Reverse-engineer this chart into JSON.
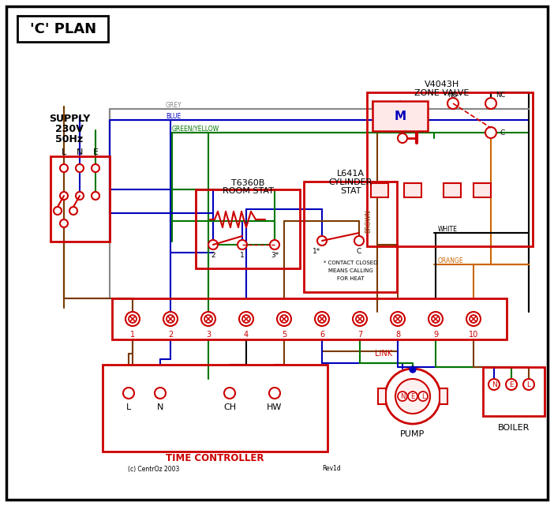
{
  "title": "'C' PLAN",
  "bg_color": "#ffffff",
  "red": "#cc0000",
  "blue": "#0000bb",
  "green": "#007700",
  "brown": "#7a3b00",
  "grey": "#888888",
  "orange": "#cc6600",
  "black": "#000000",
  "zone_valve_title": [
    "V4043H",
    "ZONE VALVE"
  ],
  "room_stat_title": [
    "T6360B",
    "ROOM STAT"
  ],
  "cyl_stat_title": [
    "L641A",
    "CYLINDER",
    "STAT"
  ],
  "time_ctrl_title": "TIME CONTROLLER",
  "pump_label": "PUMP",
  "boiler_label": "BOILER",
  "link_label": "LINK",
  "copyright": "(c) CentrOz 2003",
  "revision": "Rev1d",
  "contact_note": [
    "* CONTACT CLOSED",
    "MEANS CALLING",
    "FOR HEAT"
  ]
}
